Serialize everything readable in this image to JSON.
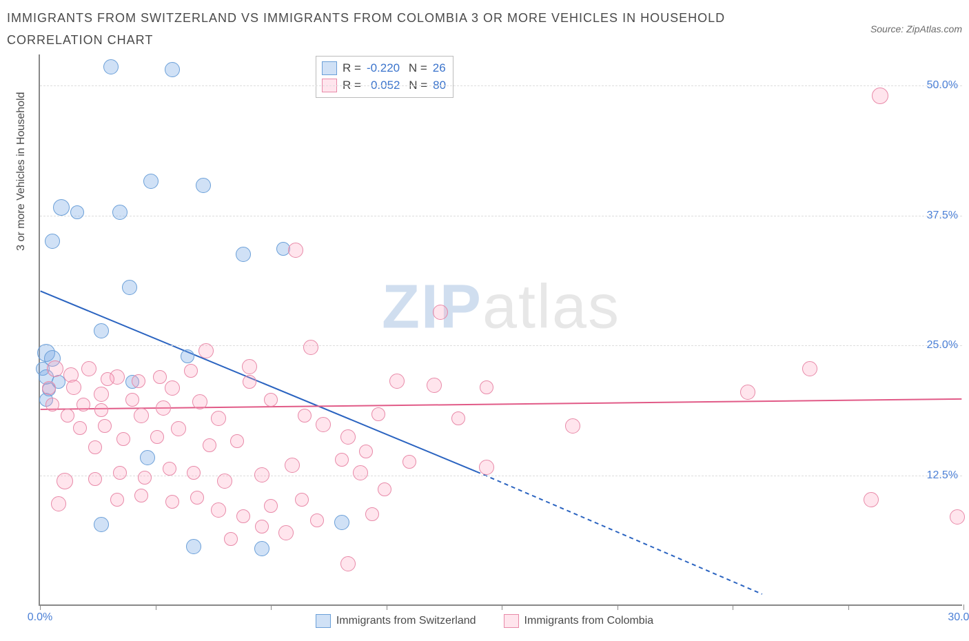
{
  "title": "IMMIGRANTS FROM SWITZERLAND VS IMMIGRANTS FROM COLOMBIA 3 OR MORE VEHICLES IN HOUSEHOLD CORRELATION CHART",
  "source": "Source: ZipAtlas.com",
  "watermark_zip": "ZIP",
  "watermark_rest": "atlas",
  "y_axis_title": "3 or more Vehicles in Household",
  "chart": {
    "type": "scatter",
    "background_color": "#ffffff",
    "grid_color": "#dddddd",
    "axis_color": "#888888",
    "label_color": "#4a7fd6",
    "xlim": [
      0,
      30
    ],
    "ylim": [
      0,
      53
    ],
    "yticks": [
      {
        "v": 12.5,
        "label": "12.5%"
      },
      {
        "v": 25.0,
        "label": "25.0%"
      },
      {
        "v": 37.5,
        "label": "37.5%"
      },
      {
        "v": 50.0,
        "label": "50.0%"
      }
    ],
    "xticks": [
      0,
      3.75,
      7.5,
      11.25,
      15,
      18.75,
      22.5,
      26.25,
      30
    ],
    "xlabels": [
      {
        "v": 0,
        "label": "0.0%"
      },
      {
        "v": 30,
        "label": "30.0%"
      }
    ],
    "marker_radius_blue": 11,
    "marker_radius_pink": 11,
    "series": [
      {
        "name": "Immigrants from Switzerland",
        "color_fill": "rgba(120,170,230,0.35)",
        "color_stroke": "#6a9fd8",
        "R": "-0.220",
        "N": "26",
        "trend": {
          "x1": 0,
          "y1": 30.2,
          "x2": 14.2,
          "y2": 12.8,
          "x2d": 23.5,
          "y2d": 1.0,
          "color": "#2a63c0",
          "width": 2
        },
        "points": [
          {
            "x": 2.3,
            "y": 51.8,
            "r": 11
          },
          {
            "x": 4.3,
            "y": 51.5,
            "r": 11
          },
          {
            "x": 3.6,
            "y": 40.8,
            "r": 11
          },
          {
            "x": 5.3,
            "y": 40.4,
            "r": 11
          },
          {
            "x": 0.7,
            "y": 38.3,
            "r": 12
          },
          {
            "x": 1.2,
            "y": 37.8,
            "r": 10
          },
          {
            "x": 2.6,
            "y": 37.8,
            "r": 11
          },
          {
            "x": 0.4,
            "y": 35.0,
            "r": 11
          },
          {
            "x": 6.6,
            "y": 33.8,
            "r": 11
          },
          {
            "x": 7.9,
            "y": 34.3,
            "r": 10
          },
          {
            "x": 2.9,
            "y": 30.6,
            "r": 11
          },
          {
            "x": 0.2,
            "y": 24.3,
            "r": 13
          },
          {
            "x": 0.4,
            "y": 23.8,
            "r": 12
          },
          {
            "x": 2.0,
            "y": 26.4,
            "r": 11
          },
          {
            "x": 0.1,
            "y": 22.8,
            "r": 10
          },
          {
            "x": 0.2,
            "y": 22.0,
            "r": 11
          },
          {
            "x": 0.3,
            "y": 20.8,
            "r": 10
          },
          {
            "x": 0.2,
            "y": 19.8,
            "r": 10
          },
          {
            "x": 0.6,
            "y": 21.5,
            "r": 10
          },
          {
            "x": 3.0,
            "y": 21.5,
            "r": 10
          },
          {
            "x": 3.5,
            "y": 14.2,
            "r": 11
          },
          {
            "x": 2.0,
            "y": 7.8,
            "r": 11
          },
          {
            "x": 5.0,
            "y": 5.7,
            "r": 11
          },
          {
            "x": 7.2,
            "y": 5.5,
            "r": 11
          },
          {
            "x": 9.8,
            "y": 8.0,
            "r": 11
          },
          {
            "x": 4.8,
            "y": 24.0,
            "r": 10
          }
        ]
      },
      {
        "name": "Immigrants from Colombia",
        "color_fill": "rgba(255,160,190,0.28)",
        "color_stroke": "#e889a8",
        "R": "0.052",
        "N": "80",
        "trend": {
          "x1": 0,
          "y1": 18.8,
          "x2": 30,
          "y2": 19.8,
          "color": "#e15a87",
          "width": 2
        },
        "points": [
          {
            "x": 27.3,
            "y": 49.0,
            "r": 12
          },
          {
            "x": 8.3,
            "y": 34.2,
            "r": 11
          },
          {
            "x": 13.0,
            "y": 28.2,
            "r": 11
          },
          {
            "x": 8.8,
            "y": 24.8,
            "r": 11
          },
          {
            "x": 5.4,
            "y": 24.5,
            "r": 11
          },
          {
            "x": 6.8,
            "y": 23.0,
            "r": 11
          },
          {
            "x": 0.5,
            "y": 22.8,
            "r": 12
          },
          {
            "x": 1.0,
            "y": 22.2,
            "r": 11
          },
          {
            "x": 1.6,
            "y": 22.8,
            "r": 11
          },
          {
            "x": 1.1,
            "y": 21.0,
            "r": 11
          },
          {
            "x": 2.5,
            "y": 22.0,
            "r": 11
          },
          {
            "x": 2.0,
            "y": 20.3,
            "r": 11
          },
          {
            "x": 3.2,
            "y": 21.6,
            "r": 10
          },
          {
            "x": 4.3,
            "y": 20.9,
            "r": 11
          },
          {
            "x": 4.0,
            "y": 19.0,
            "r": 11
          },
          {
            "x": 3.3,
            "y": 18.3,
            "r": 11
          },
          {
            "x": 2.0,
            "y": 18.8,
            "r": 10
          },
          {
            "x": 1.4,
            "y": 19.3,
            "r": 10
          },
          {
            "x": 5.2,
            "y": 19.6,
            "r": 11
          },
          {
            "x": 5.8,
            "y": 18.0,
            "r": 11
          },
          {
            "x": 6.8,
            "y": 21.5,
            "r": 10
          },
          {
            "x": 7.5,
            "y": 19.8,
            "r": 10
          },
          {
            "x": 11.6,
            "y": 21.6,
            "r": 11
          },
          {
            "x": 12.8,
            "y": 21.2,
            "r": 11
          },
          {
            "x": 14.5,
            "y": 21.0,
            "r": 10
          },
          {
            "x": 17.3,
            "y": 17.3,
            "r": 11
          },
          {
            "x": 23.0,
            "y": 20.5,
            "r": 11
          },
          {
            "x": 25.0,
            "y": 22.8,
            "r": 11
          },
          {
            "x": 4.5,
            "y": 17.0,
            "r": 11
          },
          {
            "x": 3.8,
            "y": 16.2,
            "r": 10
          },
          {
            "x": 2.7,
            "y": 16.0,
            "r": 10
          },
          {
            "x": 1.8,
            "y": 15.2,
            "r": 10
          },
          {
            "x": 5.5,
            "y": 15.4,
            "r": 10
          },
          {
            "x": 6.4,
            "y": 15.8,
            "r": 10
          },
          {
            "x": 9.2,
            "y": 17.4,
            "r": 11
          },
          {
            "x": 10.0,
            "y": 16.2,
            "r": 11
          },
          {
            "x": 10.6,
            "y": 14.8,
            "r": 10
          },
          {
            "x": 9.8,
            "y": 14.0,
            "r": 10
          },
          {
            "x": 8.2,
            "y": 13.5,
            "r": 11
          },
          {
            "x": 7.2,
            "y": 12.6,
            "r": 11
          },
          {
            "x": 6.0,
            "y": 12.0,
            "r": 11
          },
          {
            "x": 5.0,
            "y": 12.8,
            "r": 10
          },
          {
            "x": 4.2,
            "y": 13.2,
            "r": 10
          },
          {
            "x": 3.4,
            "y": 12.3,
            "r": 10
          },
          {
            "x": 2.6,
            "y": 12.8,
            "r": 10
          },
          {
            "x": 1.8,
            "y": 12.2,
            "r": 10
          },
          {
            "x": 0.8,
            "y": 12.0,
            "r": 12
          },
          {
            "x": 0.6,
            "y": 9.8,
            "r": 11
          },
          {
            "x": 2.5,
            "y": 10.2,
            "r": 10
          },
          {
            "x": 3.3,
            "y": 10.6,
            "r": 10
          },
          {
            "x": 4.3,
            "y": 10.0,
            "r": 10
          },
          {
            "x": 5.1,
            "y": 10.4,
            "r": 10
          },
          {
            "x": 5.8,
            "y": 9.2,
            "r": 11
          },
          {
            "x": 6.6,
            "y": 8.6,
            "r": 10
          },
          {
            "x": 7.5,
            "y": 9.6,
            "r": 10
          },
          {
            "x": 8.5,
            "y": 10.2,
            "r": 10
          },
          {
            "x": 9.0,
            "y": 8.2,
            "r": 10
          },
          {
            "x": 8.0,
            "y": 7.0,
            "r": 11
          },
          {
            "x": 7.2,
            "y": 7.6,
            "r": 10
          },
          {
            "x": 6.2,
            "y": 6.4,
            "r": 10
          },
          {
            "x": 10.4,
            "y": 12.8,
            "r": 11
          },
          {
            "x": 11.2,
            "y": 11.2,
            "r": 10
          },
          {
            "x": 12.0,
            "y": 13.8,
            "r": 10
          },
          {
            "x": 14.5,
            "y": 13.3,
            "r": 11
          },
          {
            "x": 10.0,
            "y": 4.0,
            "r": 11
          },
          {
            "x": 10.8,
            "y": 8.8,
            "r": 10
          },
          {
            "x": 27.0,
            "y": 10.2,
            "r": 11
          },
          {
            "x": 29.8,
            "y": 8.5,
            "r": 11
          },
          {
            "x": 2.2,
            "y": 21.8,
            "r": 10
          },
          {
            "x": 3.0,
            "y": 19.8,
            "r": 10
          },
          {
            "x": 3.9,
            "y": 22.0,
            "r": 10
          },
          {
            "x": 4.9,
            "y": 22.6,
            "r": 10
          },
          {
            "x": 13.6,
            "y": 18.0,
            "r": 10
          },
          {
            "x": 1.3,
            "y": 17.1,
            "r": 10
          },
          {
            "x": 2.1,
            "y": 17.3,
            "r": 10
          },
          {
            "x": 0.9,
            "y": 18.3,
            "r": 10
          },
          {
            "x": 0.4,
            "y": 19.3,
            "r": 10
          },
          {
            "x": 0.3,
            "y": 20.9,
            "r": 10
          },
          {
            "x": 11.0,
            "y": 18.4,
            "r": 10
          },
          {
            "x": 8.6,
            "y": 18.3,
            "r": 10
          }
        ]
      }
    ]
  },
  "legend_bottom": [
    {
      "label": "Immigrants from Switzerland",
      "swatch": "blue"
    },
    {
      "label": "Immigrants from Colombia",
      "swatch": "pink"
    }
  ]
}
